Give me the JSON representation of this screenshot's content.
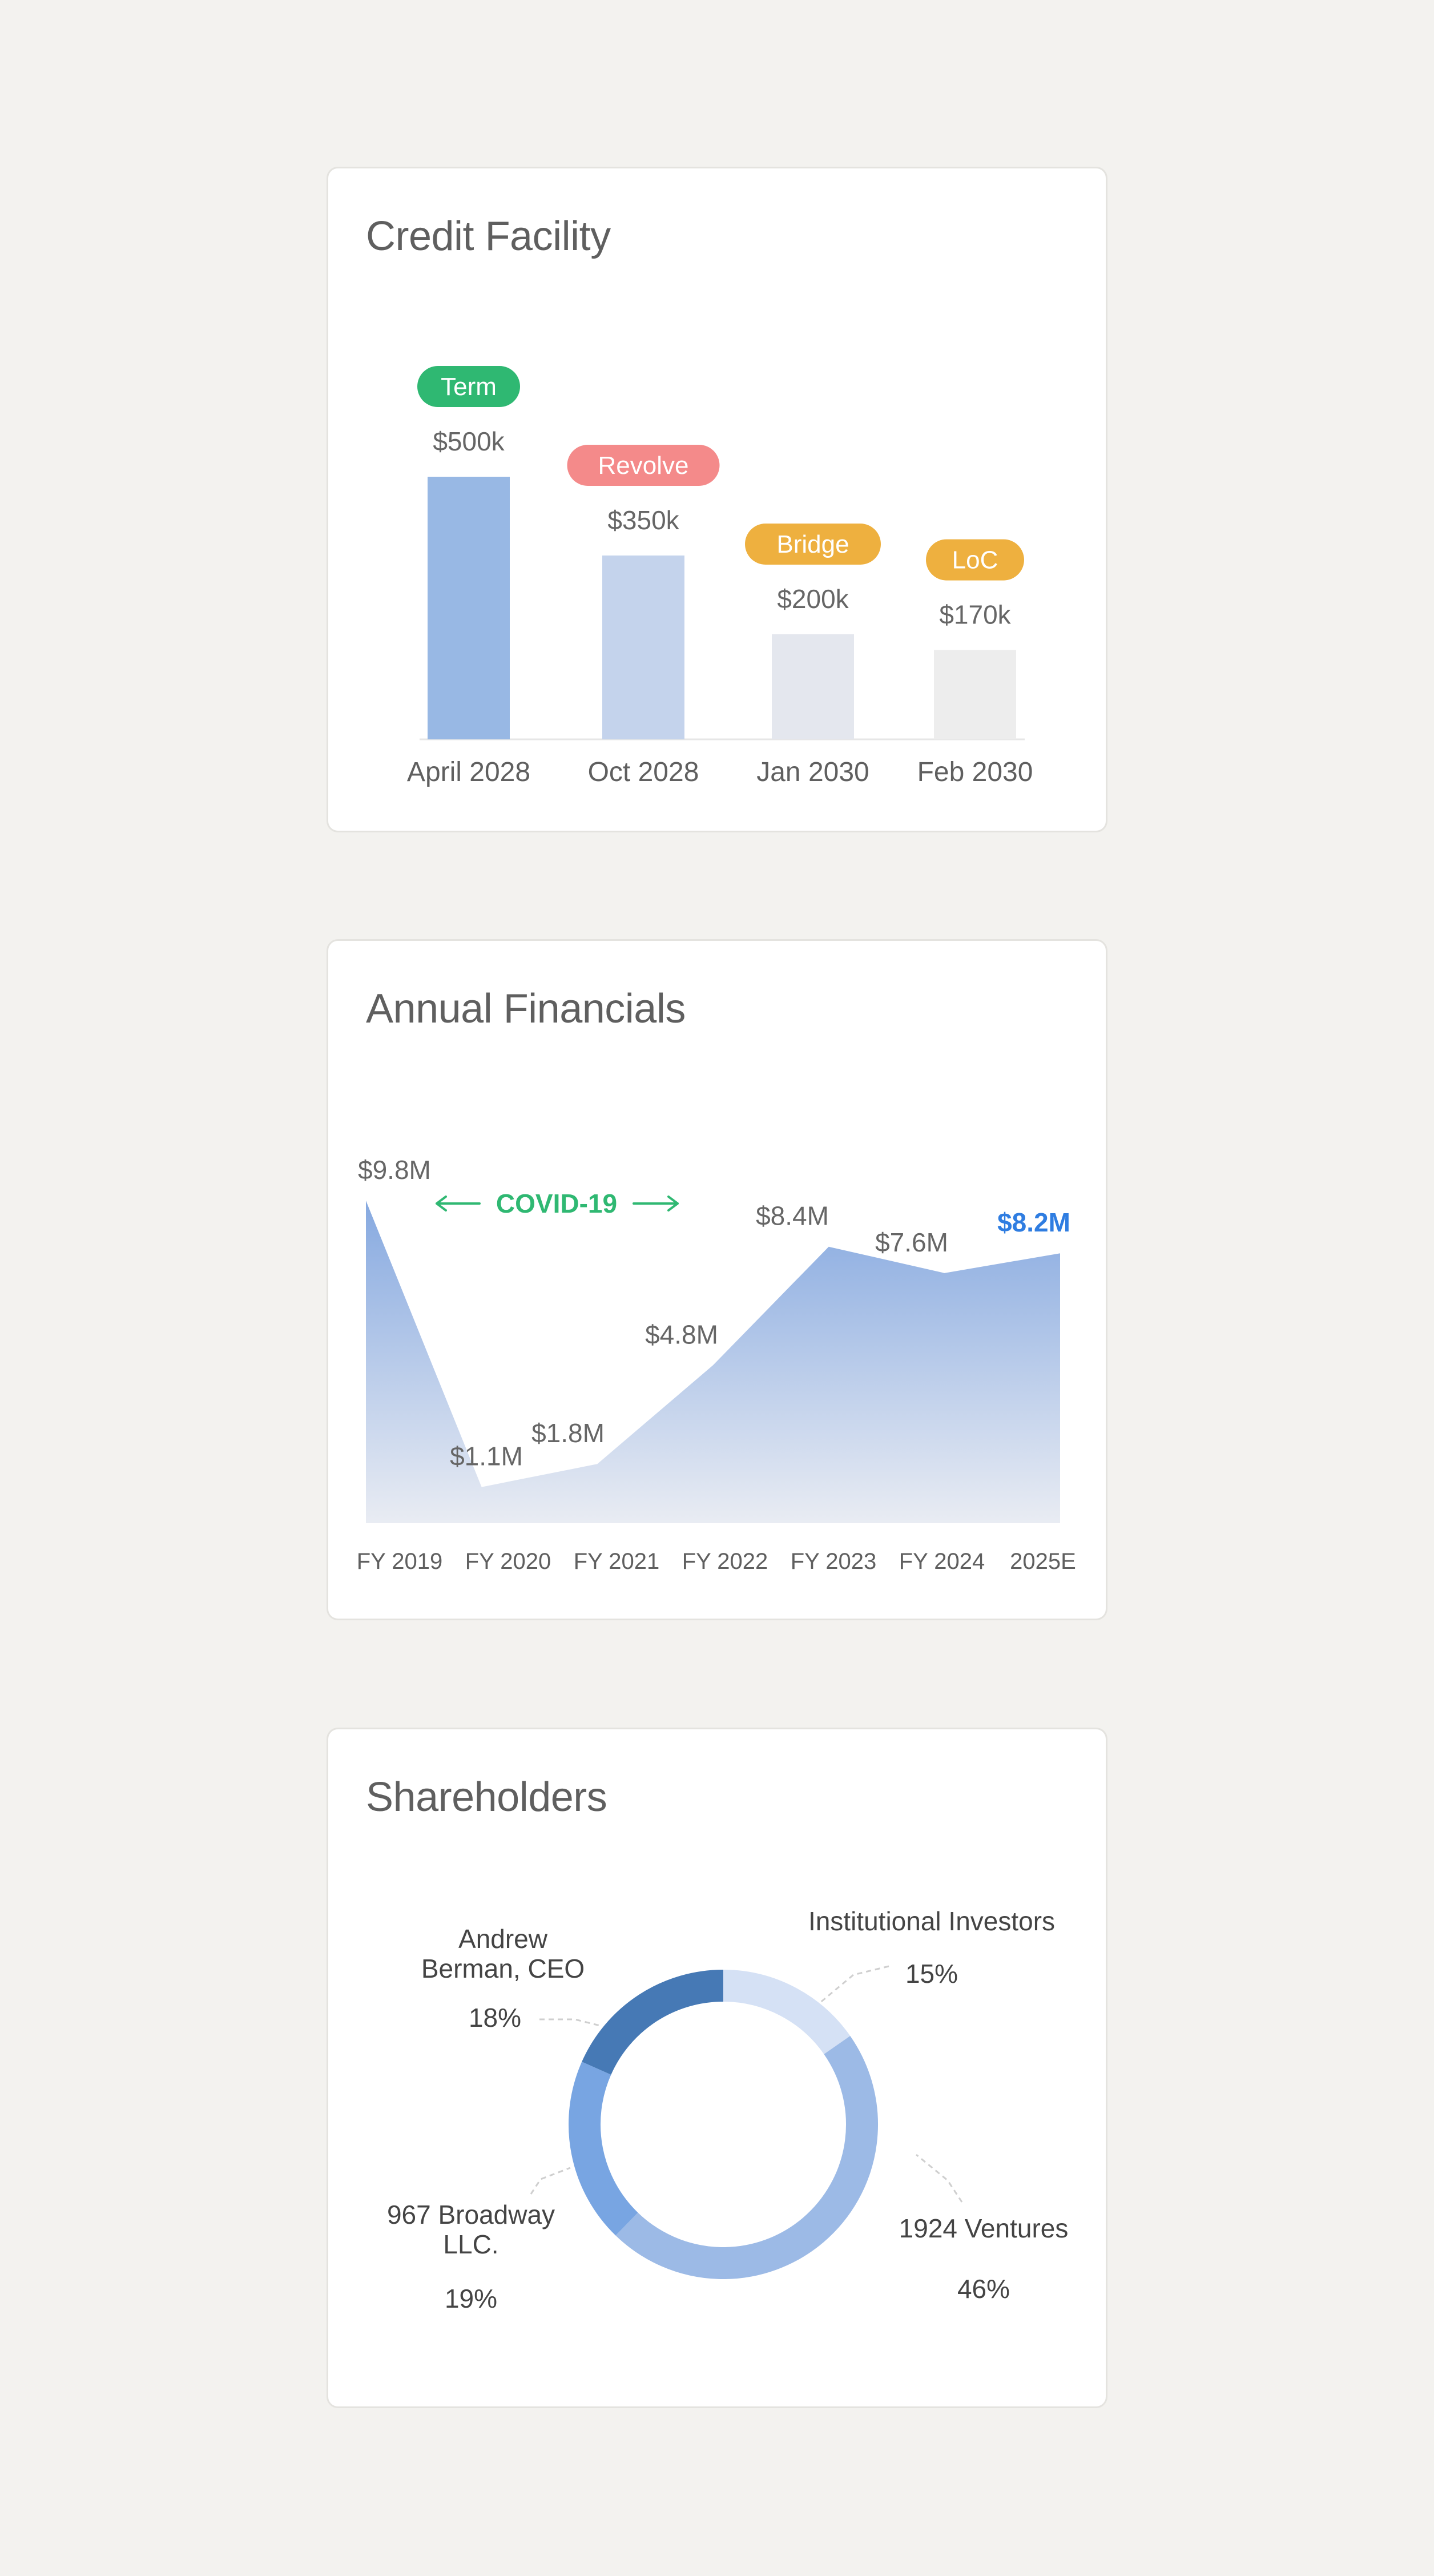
{
  "cards": {
    "credit_facility": {
      "title": "Credit Facility"
    },
    "annual_financials": {
      "title": "Annual Financials"
    },
    "shareholders": {
      "title": "Shareholders"
    }
  },
  "chart_data": [
    {
      "type": "bar",
      "title": "Credit Facility",
      "categories": [
        "April 2028",
        "Oct 2028",
        "Jan 2030",
        "Feb 2030"
      ],
      "values": [
        500,
        350,
        200,
        170
      ],
      "value_labels": [
        "$500k",
        "$350k",
        "$200k",
        "$170k"
      ],
      "tags": [
        "Term",
        "Revolve",
        "Bridge",
        "LoC"
      ],
      "tag_colors": [
        "#2fb872",
        "#f48a8a",
        "#eeb03f",
        "#eeb03f"
      ],
      "bar_colors": [
        "#98b8e4",
        "#c4d3ec",
        "#e4e7ee",
        "#ededed"
      ],
      "unit": "thousands USD",
      "ylim": [
        0,
        500
      ],
      "grid": false,
      "legend": "none"
    },
    {
      "type": "area",
      "title": "Annual Financials",
      "categories": [
        "FY 2019",
        "FY 2020",
        "FY 2021",
        "FY 2022",
        "FY 2023",
        "FY 2024",
        "2025E"
      ],
      "values": [
        9.8,
        1.1,
        1.8,
        4.8,
        8.4,
        7.6,
        8.2
      ],
      "value_labels": [
        "$9.8M",
        "$1.1M",
        "$1.8M",
        "$4.8M",
        "$8.4M",
        "$7.6M",
        "$8.2M"
      ],
      "highlight_index": 6,
      "highlight_color": "#2f7de1",
      "annotation": {
        "text": "COVID-19",
        "from": "FY 2019",
        "to": "FY 2021",
        "color": "#2fb872"
      },
      "fill_top": "#86a9e0",
      "fill_bottom": "#e9ecf3",
      "unit": "millions USD",
      "ylim": [
        0,
        9.8
      ],
      "grid": false,
      "legend": "none"
    },
    {
      "type": "pie",
      "subtype": "donut",
      "title": "Shareholders",
      "slices": [
        {
          "label": "Institutional Investors",
          "value": 15,
          "value_label": "15%",
          "color": "#d5e1f5"
        },
        {
          "label": "1924 Ventures",
          "value": 46,
          "value_label": "46%",
          "color": "#9cbae6"
        },
        {
          "label": "967 Broadway LLC.",
          "value": 19,
          "value_label": "19%",
          "color": "#78a5e2"
        },
        {
          "label": "Andrew Berman, CEO",
          "value": 18,
          "value_label": "18%",
          "color": "#4679b5"
        }
      ],
      "label_lines": [
        [
          "Institutional Investors"
        ],
        [
          "1924 Ventures"
        ],
        [
          "967 Broadway",
          "LLC."
        ],
        [
          "Andrew",
          "Berman, CEO"
        ]
      ],
      "legend": "none"
    }
  ]
}
